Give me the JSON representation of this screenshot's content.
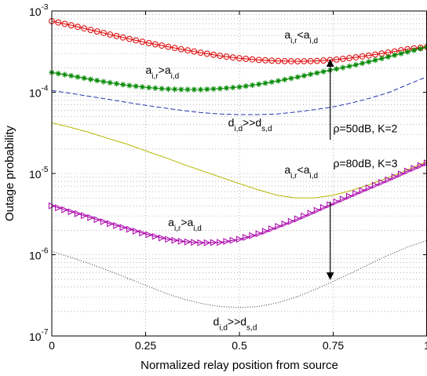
{
  "chart_data": {
    "type": "line",
    "xlabel": "Normalized relay position from source",
    "ylabel": "Outage probability",
    "xlim": [
      0,
      1
    ],
    "ylim": [
      1e-07,
      0.001
    ],
    "yscale": "log",
    "grid": "dotted, major and minor",
    "x_ticks": [
      "0",
      "0.25",
      "0.5",
      "0.75",
      "1"
    ],
    "y_ticks": [
      {
        "base": "10",
        "exp": "-7"
      },
      {
        "base": "10",
        "exp": "-6"
      },
      {
        "base": "10",
        "exp": "-5"
      },
      {
        "base": "10",
        "exp": "-4"
      },
      {
        "base": "10",
        "exp": "-3"
      }
    ],
    "series": [
      {
        "color": "#dd0000",
        "style": "line-circle-markers",
        "x": [
          0,
          0.05,
          0.1,
          0.15,
          0.2,
          0.25,
          0.3,
          0.35,
          0.4,
          0.45,
          0.5,
          0.55,
          0.6,
          0.65,
          0.7,
          0.75,
          0.8,
          0.85,
          0.9,
          0.95,
          1.0
        ],
        "y": [
          0.00075,
          0.00067,
          0.00059,
          0.00052,
          0.00046,
          0.00041,
          0.00037,
          0.000335,
          0.000305,
          0.00028,
          0.000262,
          0.00025,
          0.000243,
          0.00024,
          0.000242,
          0.00025,
          0.000265,
          0.000285,
          0.00031,
          0.00034,
          0.00036
        ]
      },
      {
        "color": "#008800",
        "style": "line-star-markers",
        "x": [
          0,
          0.05,
          0.1,
          0.15,
          0.2,
          0.25,
          0.3,
          0.35,
          0.4,
          0.45,
          0.5,
          0.55,
          0.6,
          0.65,
          0.7,
          0.75,
          0.8,
          0.85,
          0.9,
          0.95,
          1.0
        ],
        "y": [
          0.000175,
          0.00016,
          0.000145,
          0.000132,
          0.000122,
          0.000115,
          0.00011,
          0.000108,
          0.000108,
          0.000111,
          0.000116,
          0.000125,
          0.000137,
          0.000152,
          0.00017,
          0.00019,
          0.000212,
          0.00024,
          0.000275,
          0.000315,
          0.00036
        ]
      },
      {
        "color": "#2233aa",
        "style": "dashed",
        "x": [
          0,
          0.05,
          0.1,
          0.15,
          0.2,
          0.25,
          0.3,
          0.35,
          0.4,
          0.45,
          0.5,
          0.55,
          0.6,
          0.65,
          0.7,
          0.75,
          0.8,
          0.85,
          0.9,
          0.95,
          1.0
        ],
        "y": [
          0.000105,
          9.7e-05,
          8.9e-05,
          8.2e-05,
          7.5e-05,
          6.9e-05,
          6.4e-05,
          5.95e-05,
          5.6e-05,
          5.4e-05,
          5.3e-05,
          5.3e-05,
          5.4e-05,
          5.7e-05,
          6.1e-05,
          6.6e-05,
          7.4e-05,
          8.5e-05,
          0.0001,
          0.000125,
          0.000155
        ]
      },
      {
        "color": "#b5b500",
        "style": "solid",
        "x": [
          0,
          0.05,
          0.1,
          0.15,
          0.2,
          0.25,
          0.3,
          0.35,
          0.4,
          0.45,
          0.5,
          0.55,
          0.6,
          0.65,
          0.7,
          0.75,
          0.8,
          0.85,
          0.9,
          0.95,
          1.0
        ],
        "y": [
          4.2e-05,
          3.7e-05,
          3.2e-05,
          2.7e-05,
          2.3e-05,
          1.9e-05,
          1.58e-05,
          1.3e-05,
          1.08e-05,
          9e-06,
          7.5e-06,
          6.3e-06,
          5.4e-06,
          5e-06,
          5e-06,
          5.4e-06,
          6.2e-06,
          7.4e-06,
          9e-06,
          1.12e-05,
          1.4e-05
        ]
      },
      {
        "color": "#aa00aa",
        "style": "line-triangle-markers",
        "x": [
          0,
          0.05,
          0.1,
          0.15,
          0.2,
          0.25,
          0.3,
          0.35,
          0.4,
          0.45,
          0.5,
          0.55,
          0.6,
          0.65,
          0.7,
          0.75,
          0.8,
          0.85,
          0.9,
          0.95,
          1.0
        ],
        "y": [
          4e-06,
          3.4e-06,
          2.9e-06,
          2.45e-06,
          2.1e-06,
          1.8e-06,
          1.58e-06,
          1.45e-06,
          1.4e-06,
          1.42e-06,
          1.55e-06,
          1.8e-06,
          2.2e-06,
          2.7e-06,
          3.4e-06,
          4.3e-06,
          5.4e-06,
          6.8e-06,
          8.5e-06,
          1.08e-05,
          1.35e-05
        ]
      },
      {
        "color": "#333333",
        "style": "dotted",
        "x": [
          0,
          0.05,
          0.1,
          0.15,
          0.2,
          0.25,
          0.3,
          0.35,
          0.4,
          0.45,
          0.5,
          0.55,
          0.6,
          0.65,
          0.7,
          0.75,
          0.8,
          0.85,
          0.9,
          0.95,
          1.0
        ],
        "y": [
          1.1e-06,
          9.3e-07,
          7.8e-07,
          6.4e-07,
          5.2e-07,
          4.2e-07,
          3.4e-07,
          2.85e-07,
          2.5e-07,
          2.3e-07,
          2.25e-07,
          2.3e-07,
          2.55e-07,
          3e-07,
          3.7e-07,
          4.7e-07,
          6e-07,
          7.8e-07,
          1e-06,
          1.25e-06,
          1.5e-06
        ]
      }
    ],
    "annotations": [
      {
        "id": "arr-top-lt",
        "x": 0.62,
        "y": 0.00046,
        "a": "a",
        "asub": "i,r",
        "rel": "<",
        "b": "a",
        "bsub": "i,d"
      },
      {
        "id": "arr-top-gt",
        "x": 0.25,
        "y": 0.000168,
        "a": "a",
        "asub": "i,r",
        "rel": ">",
        "b": "a",
        "bsub": "i,d"
      },
      {
        "id": "drd-top",
        "x": 0.47,
        "y": 3.8e-05,
        "a": "d",
        "asub": "i,d",
        "rel": ">>",
        "b": "d",
        "bsub": "s,d"
      },
      {
        "id": "arr-bot-lt",
        "x": 0.62,
        "y": 1e-05,
        "a": "a",
        "asub": "i,r",
        "rel": "<",
        "b": "a",
        "bsub": "i,d"
      },
      {
        "id": "arr-bot-gt",
        "x": 0.31,
        "y": 2.25e-06,
        "a": "a",
        "asub": "i,r",
        "rel": ">",
        "b": "a",
        "bsub": "i,d"
      },
      {
        "id": "drd-bot",
        "x": 0.43,
        "y": 1.35e-07,
        "a": "d",
        "asub": "i,d",
        "rel": ">>",
        "b": "d",
        "bsub": "s,d"
      }
    ],
    "params": [
      {
        "x": 0.75,
        "y": 3.2e-05,
        "text": "ρ=50dB, K=2"
      },
      {
        "x": 0.75,
        "y": 1.2e-05,
        "text": "ρ=80dB, K=3"
      }
    ],
    "arrows": [
      {
        "x": 0.742,
        "y_from": 2.6e-05,
        "y_to": 0.00025
      },
      {
        "x": 0.742,
        "y_from": 4.5e-06,
        "y_to": 5e-07
      }
    ]
  }
}
